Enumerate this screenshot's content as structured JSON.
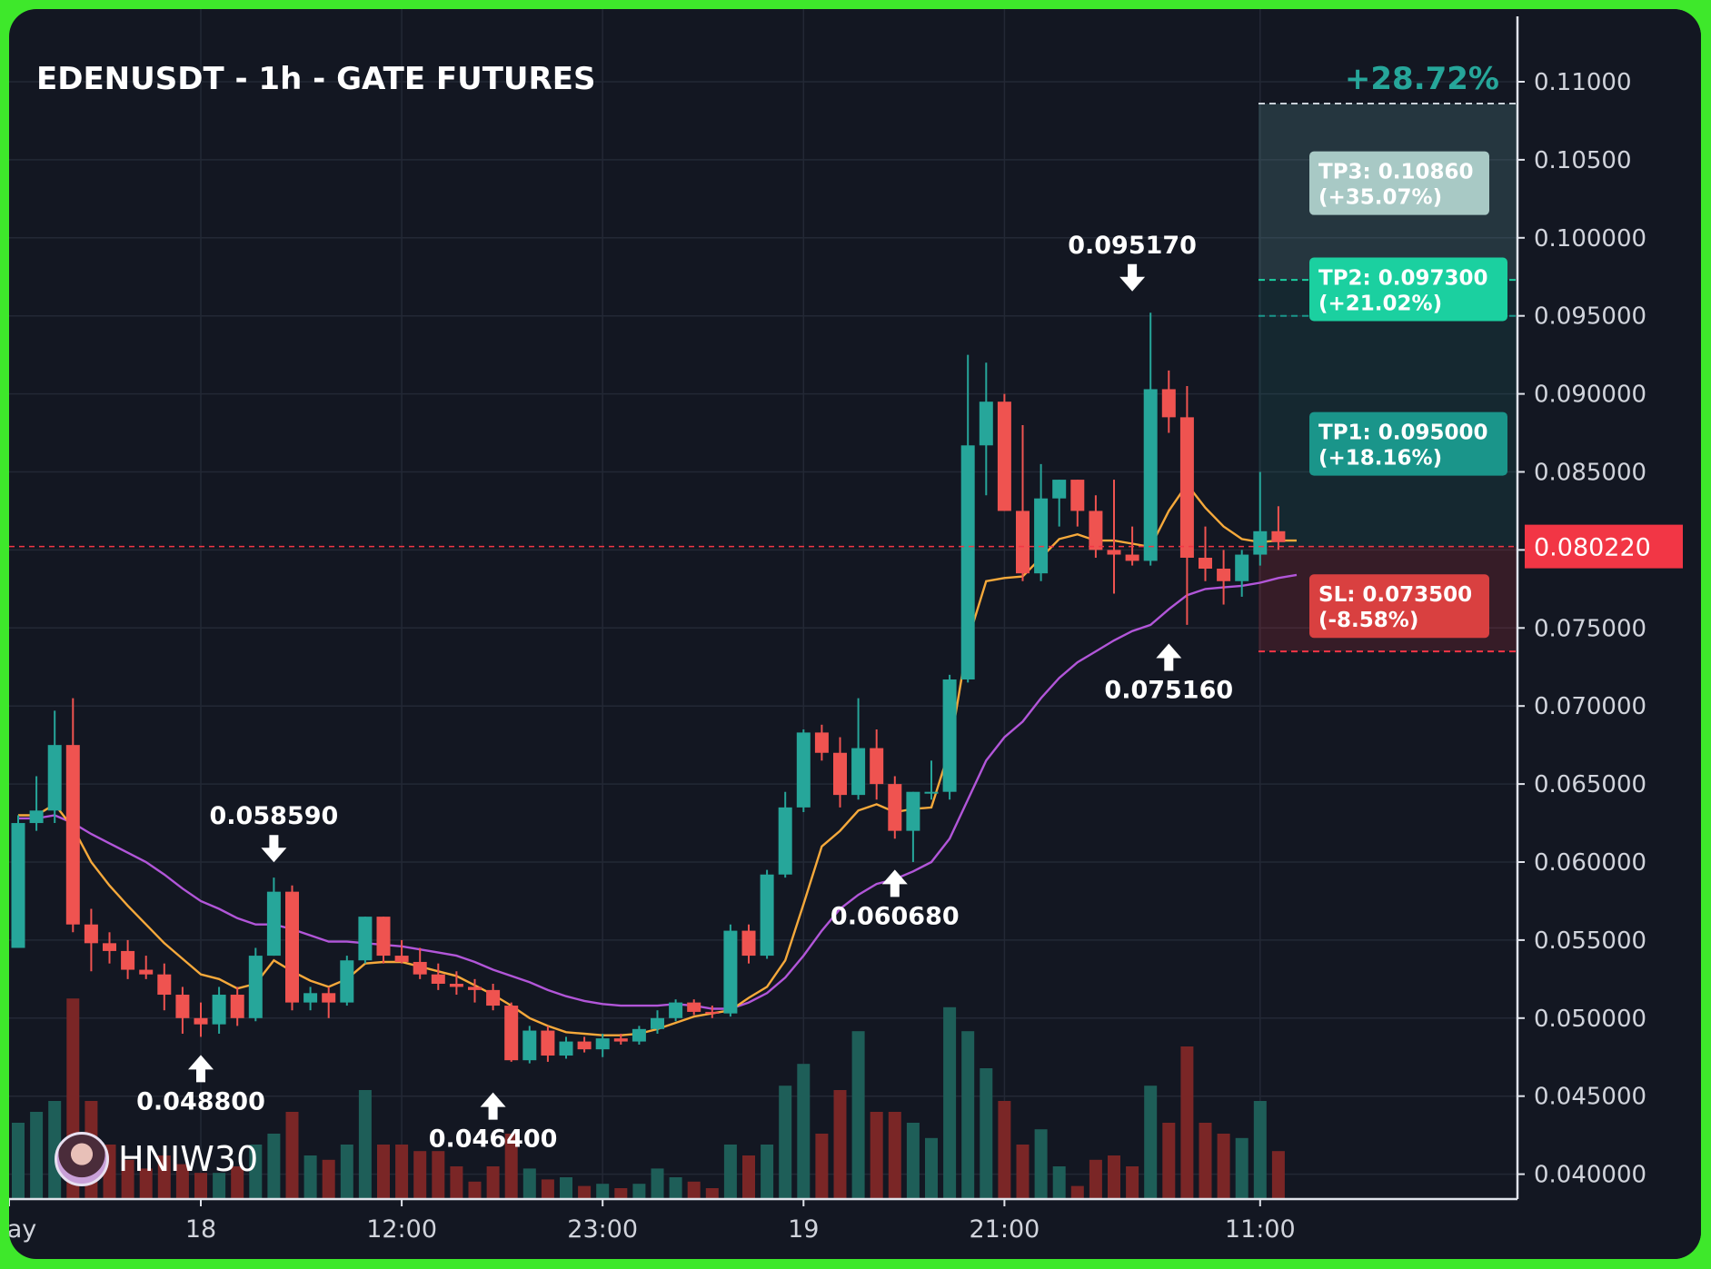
{
  "chart_data": {
    "type": "candlestick",
    "title": "EDENUSDT - 1h - GATE FUTURES",
    "y_range": [
      0.0375,
      0.1135
    ],
    "y_ticks": [
      "0.11000",
      "0.10500",
      "0.100000",
      "0.095000",
      "0.090000",
      "0.085000",
      "0.080000",
      "0.075000",
      "0.070000",
      "0.065000",
      "0.060000",
      "0.055000",
      "0.050000",
      "0.045000",
      "0.040000"
    ],
    "y_tick_values": [
      0.11,
      0.105,
      0.1,
      0.095,
      0.09,
      0.085,
      0.08,
      0.075,
      0.07,
      0.065,
      0.06,
      0.055,
      0.05,
      0.045,
      0.04
    ],
    "x_ticks": [
      {
        "label": "ay",
        "index": -0.5
      },
      {
        "label": "18",
        "index": 10
      },
      {
        "label": "12:00",
        "index": 21
      },
      {
        "label": "23:00",
        "index": 32
      },
      {
        "label": "19",
        "index": 43
      },
      {
        "label": "21:00",
        "index": 54
      },
      {
        "label": "11:00",
        "index": 68
      }
    ],
    "candles": [
      {
        "o": 0.0545,
        "h": 0.063,
        "l": 0.0545,
        "c": 0.0625,
        "v": 0.35
      },
      {
        "o": 0.0625,
        "h": 0.0655,
        "l": 0.062,
        "c": 0.0633,
        "v": 0.4
      },
      {
        "o": 0.0633,
        "h": 0.0697,
        "l": 0.0625,
        "c": 0.0675,
        "v": 0.45
      },
      {
        "o": 0.0675,
        "h": 0.0705,
        "l": 0.0555,
        "c": 0.056,
        "v": 0.92
      },
      {
        "o": 0.056,
        "h": 0.057,
        "l": 0.053,
        "c": 0.0548,
        "v": 0.45
      },
      {
        "o": 0.0548,
        "h": 0.0555,
        "l": 0.0535,
        "c": 0.0543,
        "v": 0.25
      },
      {
        "o": 0.0543,
        "h": 0.055,
        "l": 0.0525,
        "c": 0.0531,
        "v": 0.18
      },
      {
        "o": 0.0531,
        "h": 0.054,
        "l": 0.0525,
        "c": 0.0528,
        "v": 0.14
      },
      {
        "o": 0.0528,
        "h": 0.0535,
        "l": 0.0505,
        "c": 0.0515,
        "v": 0.2
      },
      {
        "o": 0.0515,
        "h": 0.052,
        "l": 0.049,
        "c": 0.05,
        "v": 0.16
      },
      {
        "o": 0.05,
        "h": 0.051,
        "l": 0.0488,
        "c": 0.0496,
        "v": 0.12
      },
      {
        "o": 0.0496,
        "h": 0.052,
        "l": 0.049,
        "c": 0.0515,
        "v": 0.12
      },
      {
        "o": 0.0515,
        "h": 0.052,
        "l": 0.0495,
        "c": 0.05,
        "v": 0.15
      },
      {
        "o": 0.05,
        "h": 0.0545,
        "l": 0.0498,
        "c": 0.054,
        "v": 0.25
      },
      {
        "o": 0.054,
        "h": 0.059,
        "l": 0.054,
        "c": 0.0581,
        "v": 0.3
      },
      {
        "o": 0.0581,
        "h": 0.0585,
        "l": 0.0505,
        "c": 0.051,
        "v": 0.4
      },
      {
        "o": 0.051,
        "h": 0.052,
        "l": 0.0505,
        "c": 0.0516,
        "v": 0.2
      },
      {
        "o": 0.0516,
        "h": 0.052,
        "l": 0.05,
        "c": 0.051,
        "v": 0.18
      },
      {
        "o": 0.051,
        "h": 0.054,
        "l": 0.0508,
        "c": 0.0537,
        "v": 0.25
      },
      {
        "o": 0.0537,
        "h": 0.0565,
        "l": 0.0535,
        "c": 0.0565,
        "v": 0.5
      },
      {
        "o": 0.0565,
        "h": 0.0565,
        "l": 0.0535,
        "c": 0.054,
        "v": 0.25
      },
      {
        "o": 0.054,
        "h": 0.055,
        "l": 0.0535,
        "c": 0.0536,
        "v": 0.25
      },
      {
        "o": 0.0536,
        "h": 0.0545,
        "l": 0.0525,
        "c": 0.0528,
        "v": 0.22
      },
      {
        "o": 0.0528,
        "h": 0.0535,
        "l": 0.0518,
        "c": 0.0522,
        "v": 0.22
      },
      {
        "o": 0.0522,
        "h": 0.053,
        "l": 0.0515,
        "c": 0.052,
        "v": 0.15
      },
      {
        "o": 0.052,
        "h": 0.0525,
        "l": 0.051,
        "c": 0.0518,
        "v": 0.08
      },
      {
        "o": 0.0518,
        "h": 0.0522,
        "l": 0.0505,
        "c": 0.0508,
        "v": 0.15
      },
      {
        "o": 0.0508,
        "h": 0.051,
        "l": 0.0472,
        "c": 0.0473,
        "v": 0.3
      },
      {
        "o": 0.0473,
        "h": 0.0495,
        "l": 0.0471,
        "c": 0.0492,
        "v": 0.14
      },
      {
        "o": 0.0492,
        "h": 0.0495,
        "l": 0.0472,
        "c": 0.0476,
        "v": 0.09
      },
      {
        "o": 0.0476,
        "h": 0.0488,
        "l": 0.0474,
        "c": 0.0485,
        "v": 0.1
      },
      {
        "o": 0.0485,
        "h": 0.0488,
        "l": 0.0478,
        "c": 0.048,
        "v": 0.06
      },
      {
        "o": 0.048,
        "h": 0.049,
        "l": 0.0475,
        "c": 0.0487,
        "v": 0.07
      },
      {
        "o": 0.0487,
        "h": 0.049,
        "l": 0.0483,
        "c": 0.0485,
        "v": 0.05
      },
      {
        "o": 0.0485,
        "h": 0.0495,
        "l": 0.0483,
        "c": 0.0493,
        "v": 0.07
      },
      {
        "o": 0.0493,
        "h": 0.0505,
        "l": 0.049,
        "c": 0.05,
        "v": 0.14
      },
      {
        "o": 0.05,
        "h": 0.0512,
        "l": 0.0498,
        "c": 0.051,
        "v": 0.1
      },
      {
        "o": 0.051,
        "h": 0.0512,
        "l": 0.0502,
        "c": 0.0504,
        "v": 0.08
      },
      {
        "o": 0.0504,
        "h": 0.0508,
        "l": 0.05,
        "c": 0.0503,
        "v": 0.05
      },
      {
        "o": 0.0503,
        "h": 0.056,
        "l": 0.0501,
        "c": 0.0556,
        "v": 0.25
      },
      {
        "o": 0.0556,
        "h": 0.056,
        "l": 0.0535,
        "c": 0.054,
        "v": 0.2
      },
      {
        "o": 0.054,
        "h": 0.0595,
        "l": 0.0538,
        "c": 0.0592,
        "v": 0.25
      },
      {
        "o": 0.0592,
        "h": 0.0645,
        "l": 0.059,
        "c": 0.0635,
        "v": 0.52
      },
      {
        "o": 0.0635,
        "h": 0.0685,
        "l": 0.0632,
        "c": 0.0683,
        "v": 0.62
      },
      {
        "o": 0.0683,
        "h": 0.0688,
        "l": 0.0665,
        "c": 0.067,
        "v": 0.3
      },
      {
        "o": 0.067,
        "h": 0.068,
        "l": 0.0635,
        "c": 0.0643,
        "v": 0.5
      },
      {
        "o": 0.0643,
        "h": 0.0705,
        "l": 0.064,
        "c": 0.0673,
        "v": 0.77
      },
      {
        "o": 0.0673,
        "h": 0.0685,
        "l": 0.064,
        "c": 0.065,
        "v": 0.4
      },
      {
        "o": 0.065,
        "h": 0.0655,
        "l": 0.0615,
        "c": 0.062,
        "v": 0.4
      },
      {
        "o": 0.062,
        "h": 0.0645,
        "l": 0.06,
        "c": 0.0645,
        "v": 0.35
      },
      {
        "o": 0.0645,
        "h": 0.0665,
        "l": 0.064,
        "c": 0.0645,
        "v": 0.28
      },
      {
        "o": 0.0645,
        "h": 0.072,
        "l": 0.064,
        "c": 0.0717,
        "v": 0.88
      },
      {
        "o": 0.0717,
        "h": 0.0925,
        "l": 0.0715,
        "c": 0.0867,
        "v": 0.77
      },
      {
        "o": 0.0867,
        "h": 0.092,
        "l": 0.0835,
        "c": 0.0895,
        "v": 0.6
      },
      {
        "o": 0.0895,
        "h": 0.09,
        "l": 0.0825,
        "c": 0.0825,
        "v": 0.45
      },
      {
        "o": 0.0825,
        "h": 0.088,
        "l": 0.078,
        "c": 0.0785,
        "v": 0.25
      },
      {
        "o": 0.0785,
        "h": 0.0855,
        "l": 0.078,
        "c": 0.0833,
        "v": 0.32
      },
      {
        "o": 0.0833,
        "h": 0.0845,
        "l": 0.0815,
        "c": 0.0845,
        "v": 0.15
      },
      {
        "o": 0.0845,
        "h": 0.0845,
        "l": 0.0815,
        "c": 0.0825,
        "v": 0.06
      },
      {
        "o": 0.0825,
        "h": 0.0835,
        "l": 0.0795,
        "c": 0.08,
        "v": 0.18
      },
      {
        "o": 0.08,
        "h": 0.0845,
        "l": 0.0772,
        "c": 0.0797,
        "v": 0.2
      },
      {
        "o": 0.0797,
        "h": 0.0815,
        "l": 0.079,
        "c": 0.0793,
        "v": 0.15
      },
      {
        "o": 0.0793,
        "h": 0.0952,
        "l": 0.079,
        "c": 0.0903,
        "v": 0.52
      },
      {
        "o": 0.0903,
        "h": 0.0915,
        "l": 0.0875,
        "c": 0.0885,
        "v": 0.35
      },
      {
        "o": 0.0885,
        "h": 0.0905,
        "l": 0.0752,
        "c": 0.0795,
        "v": 0.7
      },
      {
        "o": 0.0795,
        "h": 0.0815,
        "l": 0.078,
        "c": 0.0788,
        "v": 0.35
      },
      {
        "o": 0.0788,
        "h": 0.08,
        "l": 0.0765,
        "c": 0.078,
        "v": 0.3
      },
      {
        "o": 0.078,
        "h": 0.08,
        "l": 0.077,
        "c": 0.0797,
        "v": 0.28
      },
      {
        "o": 0.0797,
        "h": 0.085,
        "l": 0.079,
        "c": 0.0812,
        "v": 0.45
      },
      {
        "o": 0.0812,
        "h": 0.0828,
        "l": 0.08,
        "c": 0.0805,
        "v": 0.22
      }
    ],
    "ma_fast": [
      0.063,
      0.063,
      0.0637,
      0.0622,
      0.06,
      0.0585,
      0.0572,
      0.056,
      0.0548,
      0.0538,
      0.0528,
      0.0525,
      0.0519,
      0.0522,
      0.0537,
      0.053,
      0.0524,
      0.052,
      0.0525,
      0.0535,
      0.0536,
      0.0536,
      0.0533,
      0.053,
      0.0527,
      0.0521,
      0.0515,
      0.0508,
      0.05,
      0.0495,
      0.0491,
      0.049,
      0.0489,
      0.0489,
      0.049,
      0.0493,
      0.0497,
      0.0501,
      0.0503,
      0.0505,
      0.0513,
      0.052,
      0.0537,
      0.0573,
      0.061,
      0.062,
      0.0633,
      0.0637,
      0.0632,
      0.0634,
      0.0635,
      0.0672,
      0.0742,
      0.078,
      0.0782,
      0.0783,
      0.0795,
      0.0807,
      0.081,
      0.0806,
      0.0806,
      0.0804,
      0.0802,
      0.0825,
      0.0842,
      0.0827,
      0.0815,
      0.0807,
      0.0805,
      0.0806,
      0.0806
    ],
    "ma_slow": [
      0.0628,
      0.0628,
      0.063,
      0.0625,
      0.0618,
      0.0612,
      0.0606,
      0.06,
      0.0592,
      0.0583,
      0.0575,
      0.057,
      0.0564,
      0.056,
      0.056,
      0.0557,
      0.0553,
      0.0549,
      0.0549,
      0.0548,
      0.0547,
      0.0546,
      0.0544,
      0.0542,
      0.054,
      0.0536,
      0.0531,
      0.0527,
      0.0523,
      0.0518,
      0.0514,
      0.0511,
      0.0509,
      0.0508,
      0.0508,
      0.0508,
      0.0509,
      0.0508,
      0.0506,
      0.0506,
      0.051,
      0.0516,
      0.0526,
      0.054,
      0.0556,
      0.057,
      0.0579,
      0.0586,
      0.0589,
      0.0594,
      0.06,
      0.0615,
      0.064,
      0.0665,
      0.068,
      0.069,
      0.0705,
      0.0718,
      0.0728,
      0.0735,
      0.0742,
      0.0748,
      0.0752,
      0.0762,
      0.0771,
      0.0775,
      0.0776,
      0.0777,
      0.0779,
      0.0782,
      0.0784
    ],
    "annotations": [
      {
        "label": "0.058590",
        "index": 14,
        "price": 0.05859,
        "position": "above"
      },
      {
        "label": "0.048800",
        "index": 10,
        "price": 0.0488,
        "position": "below"
      },
      {
        "label": "0.046400",
        "index": 26,
        "price": 0.0464,
        "position": "below"
      },
      {
        "label": "0.060680",
        "index": 48,
        "price": 0.06068,
        "position": "below"
      },
      {
        "label": "0.095170",
        "index": 61,
        "price": 0.09517,
        "position": "above"
      },
      {
        "label": "0.075160",
        "index": 63,
        "price": 0.07516,
        "position": "below"
      }
    ],
    "current_price": {
      "label": "0.080220",
      "value": 0.08022,
      "color": "#f23645"
    },
    "levels": {
      "entry": 0.08022,
      "stop": 0.0735,
      "target_top": 0.1086,
      "tp1_line": 0.095,
      "tp2_line": 0.0973
    },
    "targets": [
      {
        "name": "TP3",
        "line1": "TP3: 0.10860",
        "line2": "(+35.07%)",
        "price": 0.1035,
        "color": "#a8c9c5"
      },
      {
        "name": "TP2",
        "line1": "TP2: 0.097300",
        "line2": "(+21.02%)",
        "price": 0.0967,
        "color": "#1bd0a0"
      },
      {
        "name": "TP1",
        "line1": "TP1: 0.095000",
        "line2": "(+18.16%)",
        "price": 0.0868,
        "color": "#1a958a"
      }
    ],
    "stop_loss": {
      "line1": "SL: 0.073500",
      "line2": "(-8.58%)",
      "price": 0.0764,
      "color": "#d94040"
    },
    "gain_label": "+28.72%",
    "colors": {
      "up": "#26a69a",
      "down": "#ef5350",
      "ma_fast": "#f6a93b",
      "ma_slow": "#b256d9",
      "up_vol": "#1e5e58",
      "down_vol": "#7a2626"
    }
  },
  "watermark": {
    "name": "HNIW30"
  }
}
